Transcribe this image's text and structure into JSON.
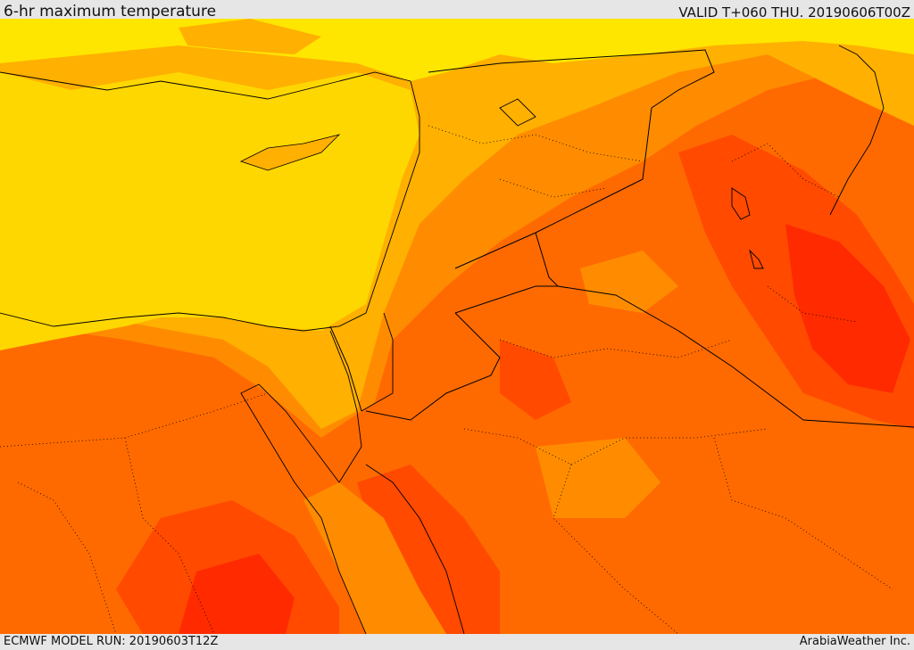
{
  "header": {
    "title": "6-hr maximum temperature",
    "valid": "VALID T+060 THU. 20190606T00Z"
  },
  "footer": {
    "model_run": "ECMWF MODEL RUN: 20190603T12Z",
    "credit": "ArabiaWeather Inc."
  },
  "palette": {
    "yellow": "#ffd700",
    "light_yellow": "#ffe600",
    "light_orange": "#ffb000",
    "orange": "#ff8c00",
    "dark_orange": "#ff6a00",
    "red_orange": "#ff4a00",
    "red": "#ff2a00",
    "border": "#000000"
  }
}
